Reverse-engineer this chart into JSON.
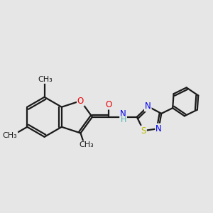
{
  "bg_color": "#e6e6e6",
  "bond_color": "#1a1a1a",
  "bond_width": 1.6,
  "font_size": 8.5,
  "atom_colors": {
    "O": "#ee0000",
    "N": "#0000ee",
    "S": "#bbbb00",
    "H": "#4db3b3",
    "C": "#1a1a1a"
  },
  "xlim": [
    0.0,
    10.0
  ],
  "ylim": [
    1.5,
    8.5
  ]
}
